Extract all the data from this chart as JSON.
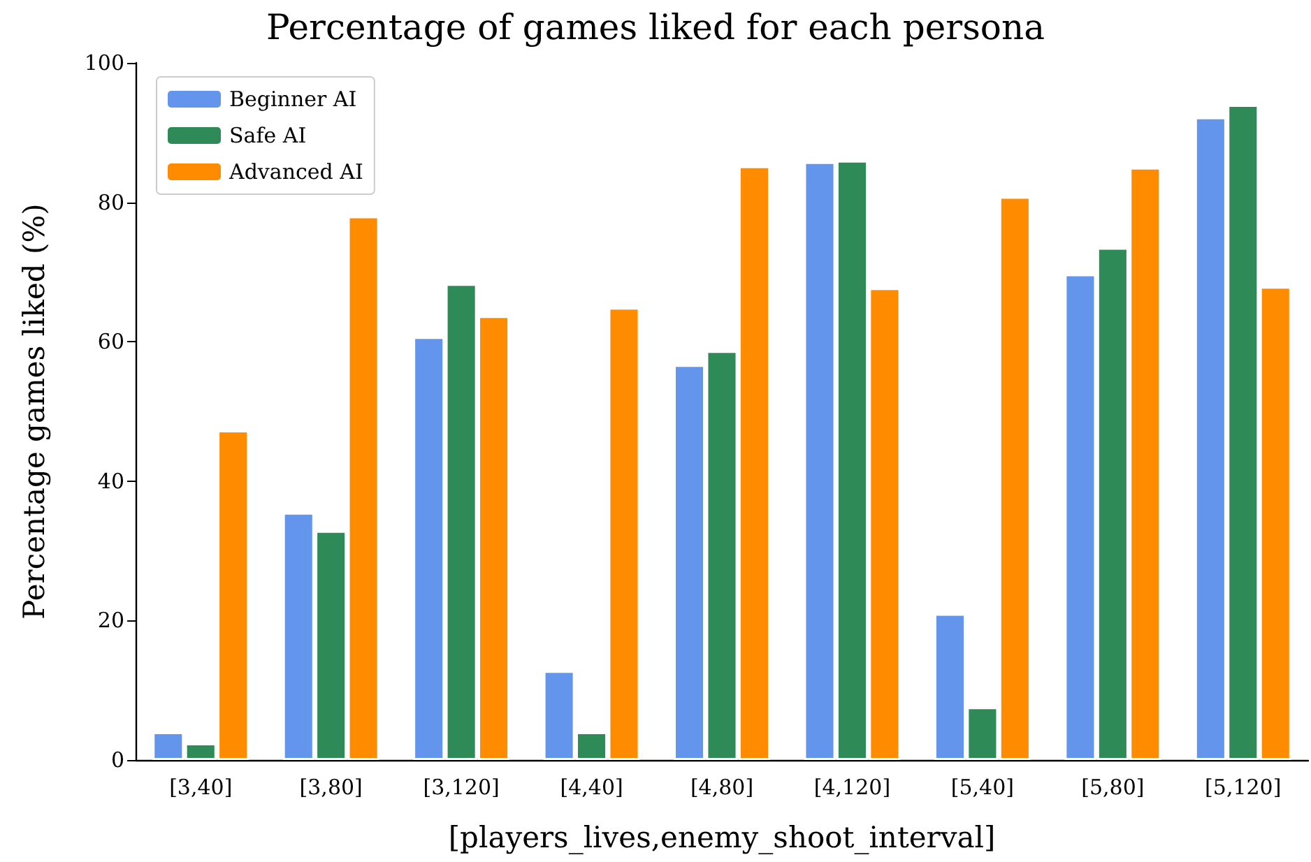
{
  "chart_data": {
    "type": "bar",
    "title": "Percentage of games liked for each persona",
    "xlabel": "[players_lives,enemy_shoot_interval]",
    "ylabel": "Percentage games liked (%)",
    "categories": [
      "[3,40]",
      "[3,80]",
      "[3,120]",
      "[4,40]",
      "[4,80]",
      "[4,120]",
      "[5,40]",
      "[5,80]",
      "[5,120]"
    ],
    "series": [
      {
        "name": "Beginner AI",
        "color": "#6495ed",
        "values": [
          4.0,
          35.5,
          60.7,
          12.8,
          56.7,
          85.8,
          21.0,
          69.7,
          92.2
        ]
      },
      {
        "name": "Safe AI",
        "color": "#2e8b57",
        "values": [
          2.4,
          32.9,
          68.3,
          4.0,
          58.7,
          86.0,
          7.6,
          73.5,
          94.0
        ]
      },
      {
        "name": "Advanced AI",
        "color": "#ff8c00",
        "values": [
          47.3,
          78.0,
          63.7,
          64.9,
          85.2,
          67.7,
          80.8,
          85.0,
          67.9
        ]
      }
    ],
    "ylim": [
      0,
      100
    ],
    "yticks": [
      0,
      20,
      40,
      60,
      80,
      100
    ],
    "grid": false,
    "legend": "top left"
  }
}
